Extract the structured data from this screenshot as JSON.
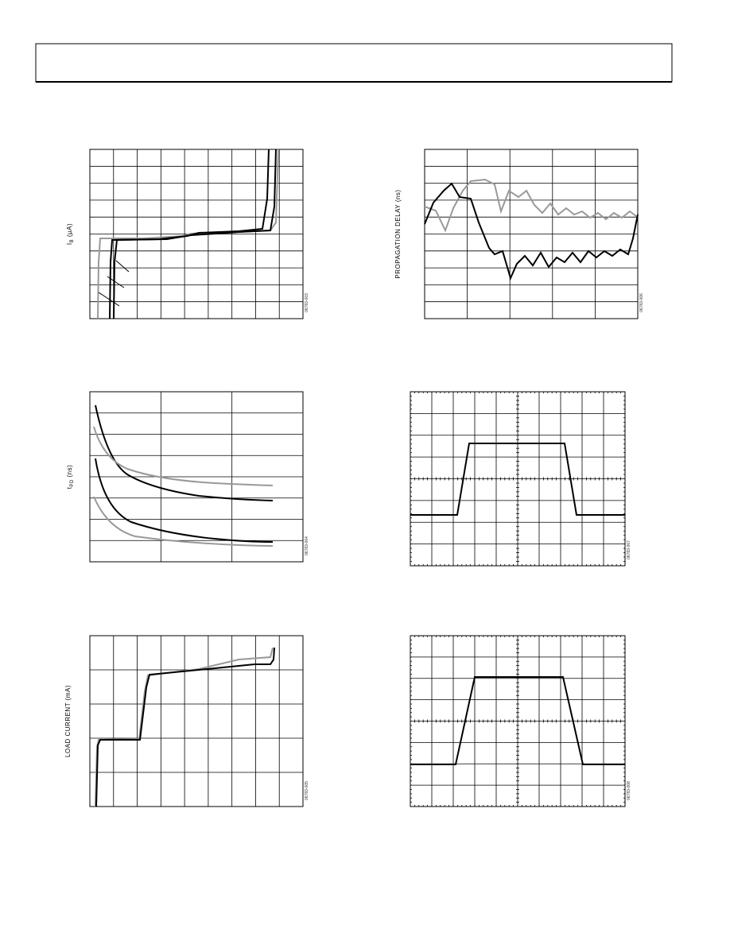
{
  "figures": [
    {
      "ylabel": "I",
      "ylabel_sub": "B",
      "ylabel_unit": " (µA)",
      "code": "06783-003"
    },
    {
      "ylabel": "PROPAGATION DELAY (ns)",
      "code": "06783-006"
    },
    {
      "ylabel": "t",
      "ylabel_sub": "PD",
      "ylabel_unit": " (ns)",
      "code": "06783-004"
    },
    {
      "code": "06783-007"
    },
    {
      "ylabel": "LOAD CURRENT (mA)",
      "code": "06783-005"
    },
    {
      "code": "06783-008"
    }
  ]
}
